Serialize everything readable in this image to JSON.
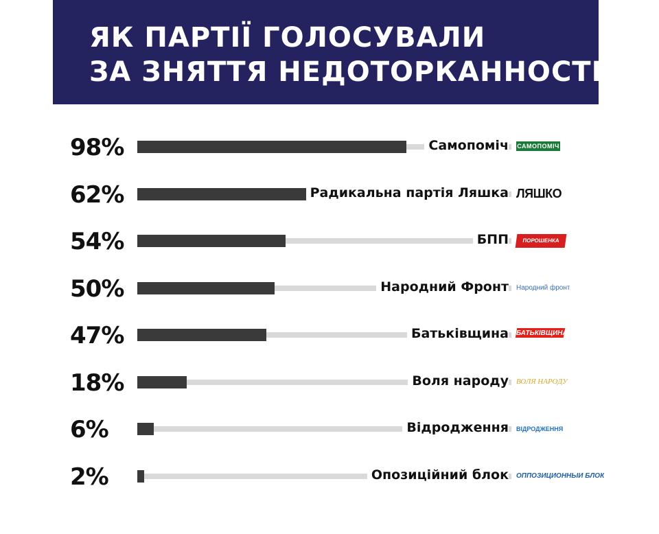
{
  "header": {
    "title_line1": "ЯК ПАРТІЇ ГОЛОСУВАЛИ",
    "title_line2": "ЗА ЗНЯТТЯ НЕДОТОРКАННОСТІ"
  },
  "colors": {
    "banner": "#25235f",
    "bar": "#3a3a3a",
    "track": "#d9d9d9"
  },
  "chart_data": {
    "type": "bar",
    "orientation": "horizontal",
    "title": "ЯК ПАРТІЇ ГОЛОСУВАЛИ ЗА ЗНЯТТЯ НЕДОТОРКАННОСТІ",
    "xlim": [
      0,
      100
    ],
    "grid": false,
    "categories": [
      "Самопоміч",
      "Радикальна партія Ляшка",
      "БПП",
      "Народний Фронт",
      "Батьківщина",
      "Воля народу",
      "Відродження",
      "Опозиційний блок"
    ],
    "values": [
      98,
      62,
      54,
      50,
      47,
      18,
      6,
      2
    ],
    "value_labels": [
      "98%",
      "62%",
      "54%",
      "50%",
      "47%",
      "18%",
      "6%",
      "2%"
    ]
  },
  "logos": [
    {
      "icon": "samopomich-logo",
      "text": "САМОПОМІЧ"
    },
    {
      "icon": "lyashko-logo",
      "text": "ЛЯШКО"
    },
    {
      "icon": "bpp-logo",
      "text": "ПОРОШЕНКА"
    },
    {
      "icon": "narodnyi-front-logo",
      "text": "Народний фронт"
    },
    {
      "icon": "batkivshchyna-logo",
      "text": "БАТЬКІВЩИНА"
    },
    {
      "icon": "volya-narodu-logo",
      "text": "ВОЛЯ НАРОДУ"
    },
    {
      "icon": "vidrodzhennia-logo",
      "text": "ВІДРОДЖЕННЯ"
    },
    {
      "icon": "opozytsiinyi-blok-logo",
      "text": "ОППОЗИЦИОННЫЙ БЛОК"
    }
  ]
}
